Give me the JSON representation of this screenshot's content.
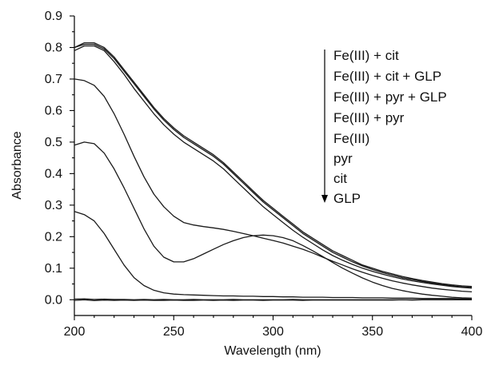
{
  "chart_data": {
    "type": "line",
    "xlabel": "Wavelength (nm)",
    "ylabel": "Absorbance",
    "xlim": [
      200,
      400
    ],
    "ylim": [
      -0.05,
      0.9
    ],
    "x_ticks": [
      200,
      250,
      300,
      350,
      400
    ],
    "x_tick_labels": [
      "200",
      "250",
      "300",
      "350",
      "400"
    ],
    "y_ticks": [
      0.0,
      0.1,
      0.2,
      0.3,
      0.4,
      0.5,
      0.6,
      0.7,
      0.8,
      0.9
    ],
    "y_tick_labels": [
      "0.0",
      "0.1",
      "0.2",
      "0.3",
      "0.4",
      "0.5",
      "0.6",
      "0.7",
      "0.8",
      "0.9"
    ],
    "grid": false,
    "legend_placement": "top-right",
    "legend_arrow": "down",
    "x": [
      200,
      205,
      210,
      215,
      220,
      225,
      230,
      235,
      240,
      245,
      250,
      255,
      260,
      265,
      270,
      275,
      280,
      285,
      290,
      295,
      300,
      305,
      310,
      315,
      320,
      325,
      330,
      335,
      340,
      345,
      350,
      355,
      360,
      365,
      370,
      375,
      380,
      385,
      390,
      395,
      400
    ],
    "series": [
      {
        "name": "Fe(III) + cit",
        "values": [
          0.8,
          0.815,
          0.815,
          0.8,
          0.77,
          0.73,
          0.69,
          0.65,
          0.61,
          0.575,
          0.545,
          0.52,
          0.5,
          0.48,
          0.46,
          0.435,
          0.405,
          0.375,
          0.345,
          0.315,
          0.29,
          0.265,
          0.24,
          0.215,
          0.195,
          0.175,
          0.155,
          0.14,
          0.125,
          0.11,
          0.1,
          0.09,
          0.082,
          0.074,
          0.067,
          0.061,
          0.056,
          0.051,
          0.047,
          0.044,
          0.042
        ]
      },
      {
        "name": "Fe(III) + cit + GLP",
        "values": [
          0.8,
          0.81,
          0.81,
          0.795,
          0.765,
          0.725,
          0.685,
          0.645,
          0.605,
          0.57,
          0.54,
          0.515,
          0.495,
          0.475,
          0.455,
          0.43,
          0.4,
          0.37,
          0.34,
          0.31,
          0.285,
          0.26,
          0.235,
          0.21,
          0.19,
          0.17,
          0.15,
          0.135,
          0.12,
          0.107,
          0.096,
          0.086,
          0.078,
          0.07,
          0.064,
          0.058,
          0.053,
          0.048,
          0.044,
          0.041,
          0.039
        ]
      },
      {
        "name": "Fe(III) + pyr + GLP",
        "values": [
          0.79,
          0.805,
          0.805,
          0.79,
          0.755,
          0.715,
          0.67,
          0.63,
          0.59,
          0.555,
          0.525,
          0.5,
          0.48,
          0.46,
          0.44,
          0.415,
          0.385,
          0.355,
          0.325,
          0.295,
          0.27,
          0.245,
          0.22,
          0.198,
          0.178,
          0.158,
          0.14,
          0.125,
          0.112,
          0.1,
          0.09,
          0.081,
          0.073,
          0.066,
          0.06,
          0.055,
          0.05,
          0.046,
          0.042,
          0.039,
          0.037
        ]
      },
      {
        "name": "Fe(III) + pyr",
        "values": [
          0.7,
          0.695,
          0.68,
          0.645,
          0.59,
          0.525,
          0.455,
          0.39,
          0.335,
          0.295,
          0.265,
          0.245,
          0.237,
          0.232,
          0.228,
          0.223,
          0.217,
          0.21,
          0.203,
          0.195,
          0.188,
          0.18,
          0.17,
          0.16,
          0.148,
          0.135,
          0.122,
          0.11,
          0.098,
          0.087,
          0.077,
          0.068,
          0.06,
          0.053,
          0.047,
          0.042,
          0.037,
          0.033,
          0.03,
          0.027,
          0.025
        ]
      },
      {
        "name": "Fe(III)",
        "values": [
          0.49,
          0.5,
          0.495,
          0.465,
          0.415,
          0.355,
          0.29,
          0.225,
          0.17,
          0.135,
          0.12,
          0.12,
          0.13,
          0.145,
          0.16,
          0.175,
          0.187,
          0.197,
          0.203,
          0.205,
          0.203,
          0.197,
          0.187,
          0.172,
          0.155,
          0.137,
          0.118,
          0.1,
          0.084,
          0.069,
          0.056,
          0.045,
          0.036,
          0.029,
          0.023,
          0.018,
          0.014,
          0.011,
          0.008,
          0.006,
          0.005
        ]
      },
      {
        "name": "pyr",
        "values": [
          0.28,
          0.27,
          0.25,
          0.21,
          0.16,
          0.11,
          0.07,
          0.045,
          0.03,
          0.022,
          0.018,
          0.016,
          0.015,
          0.014,
          0.013,
          0.012,
          0.012,
          0.011,
          0.011,
          0.01,
          0.01,
          0.009,
          0.009,
          0.008,
          0.008,
          0.008,
          0.007,
          0.007,
          0.007,
          0.006,
          0.006,
          0.006,
          0.005,
          0.005,
          0.005,
          0.004,
          0.004,
          0.004,
          0.004,
          0.003,
          0.003
        ]
      },
      {
        "name": "cit",
        "values": [
          0.002,
          0.003,
          0.001,
          0.002,
          0.001,
          0.001,
          0.0,
          0.001,
          0.0,
          0.001,
          0.0,
          0.0,
          0.001,
          0.0,
          0.0,
          0.0,
          0.001,
          0.0,
          0.0,
          0.0,
          0.0,
          0.0,
          0.001,
          0.0,
          0.0,
          0.0,
          0.0,
          0.0,
          0.0,
          0.0,
          0.0,
          0.0,
          0.0,
          0.0,
          0.0,
          0.0,
          0.0,
          0.0,
          0.0,
          0.0,
          0.0
        ]
      },
      {
        "name": "GLP",
        "values": [
          -0.002,
          0.0,
          -0.003,
          -0.001,
          -0.002,
          -0.001,
          -0.002,
          -0.001,
          -0.002,
          -0.002,
          -0.001,
          -0.002,
          -0.002,
          -0.001,
          -0.002,
          -0.001,
          -0.002,
          -0.001,
          -0.001,
          -0.002,
          -0.001,
          -0.001,
          -0.001,
          -0.002,
          -0.001,
          -0.001,
          -0.001,
          -0.001,
          -0.001,
          -0.001,
          -0.001,
          -0.001,
          -0.001,
          0.0,
          -0.001,
          0.0,
          0.0,
          0.0,
          0.0,
          0.0,
          0.0
        ]
      }
    ]
  }
}
